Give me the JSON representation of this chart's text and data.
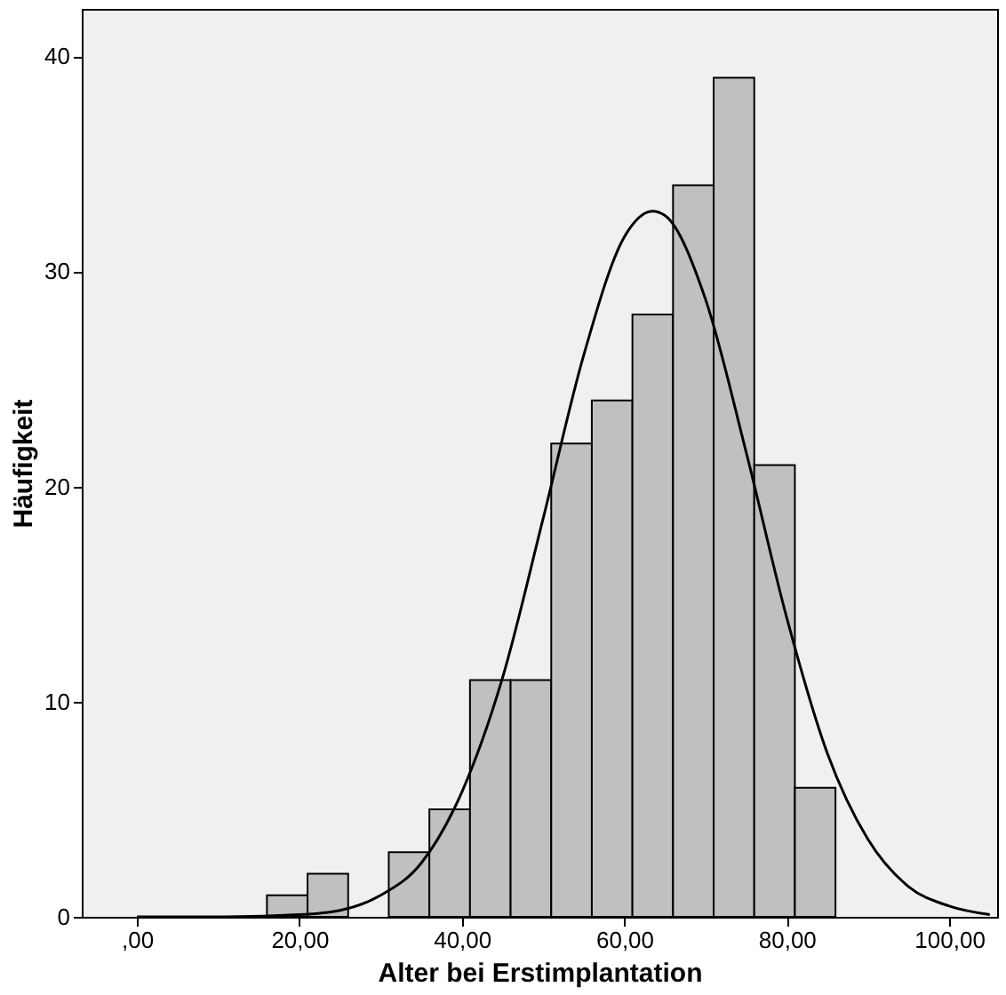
{
  "chart_data": {
    "type": "histogram",
    "xlabel": "Alter bei Erstimplantation",
    "ylabel": "Häufigkeit",
    "bins": [
      16,
      21,
      26,
      31,
      36,
      41,
      46,
      51,
      56,
      61,
      66,
      71,
      76,
      81,
      86
    ],
    "values": [
      1,
      2,
      0,
      3,
      5,
      11,
      11,
      22,
      24,
      28,
      34,
      39,
      21,
      6
    ],
    "color": "#c0c0c0",
    "series": [
      {
        "type": "line",
        "color": "#000000",
        "x": [
          0,
          10,
          20,
          25,
          30,
          35,
          40,
          45,
          50,
          55,
          60,
          63.5,
          65,
          70,
          75,
          80,
          85,
          90,
          95,
          100,
          105
        ],
        "values": [
          0.0,
          0.0,
          0.1,
          0.3,
          1.0,
          2.5,
          5.8,
          11.1,
          18.5,
          26.1,
          31.6,
          32.8,
          32.6,
          28.7,
          21.6,
          13.9,
          7.6,
          3.6,
          1.4,
          0.5,
          0.1
        ]
      }
    ],
    "xlim": [
      -6.8,
      105.9
    ],
    "ylim": [
      0,
      42.2
    ],
    "xticks": [
      {
        "value": 0,
        "label": ",00"
      },
      {
        "value": 20,
        "label": "20,00"
      },
      {
        "value": 40,
        "label": "40,00"
      },
      {
        "value": 60,
        "label": "60,00"
      },
      {
        "value": 80,
        "label": "80,00"
      },
      {
        "value": 100,
        "label": "100,00"
      }
    ],
    "yticks": [
      0,
      10,
      20,
      30,
      40
    ],
    "grid": false
  }
}
